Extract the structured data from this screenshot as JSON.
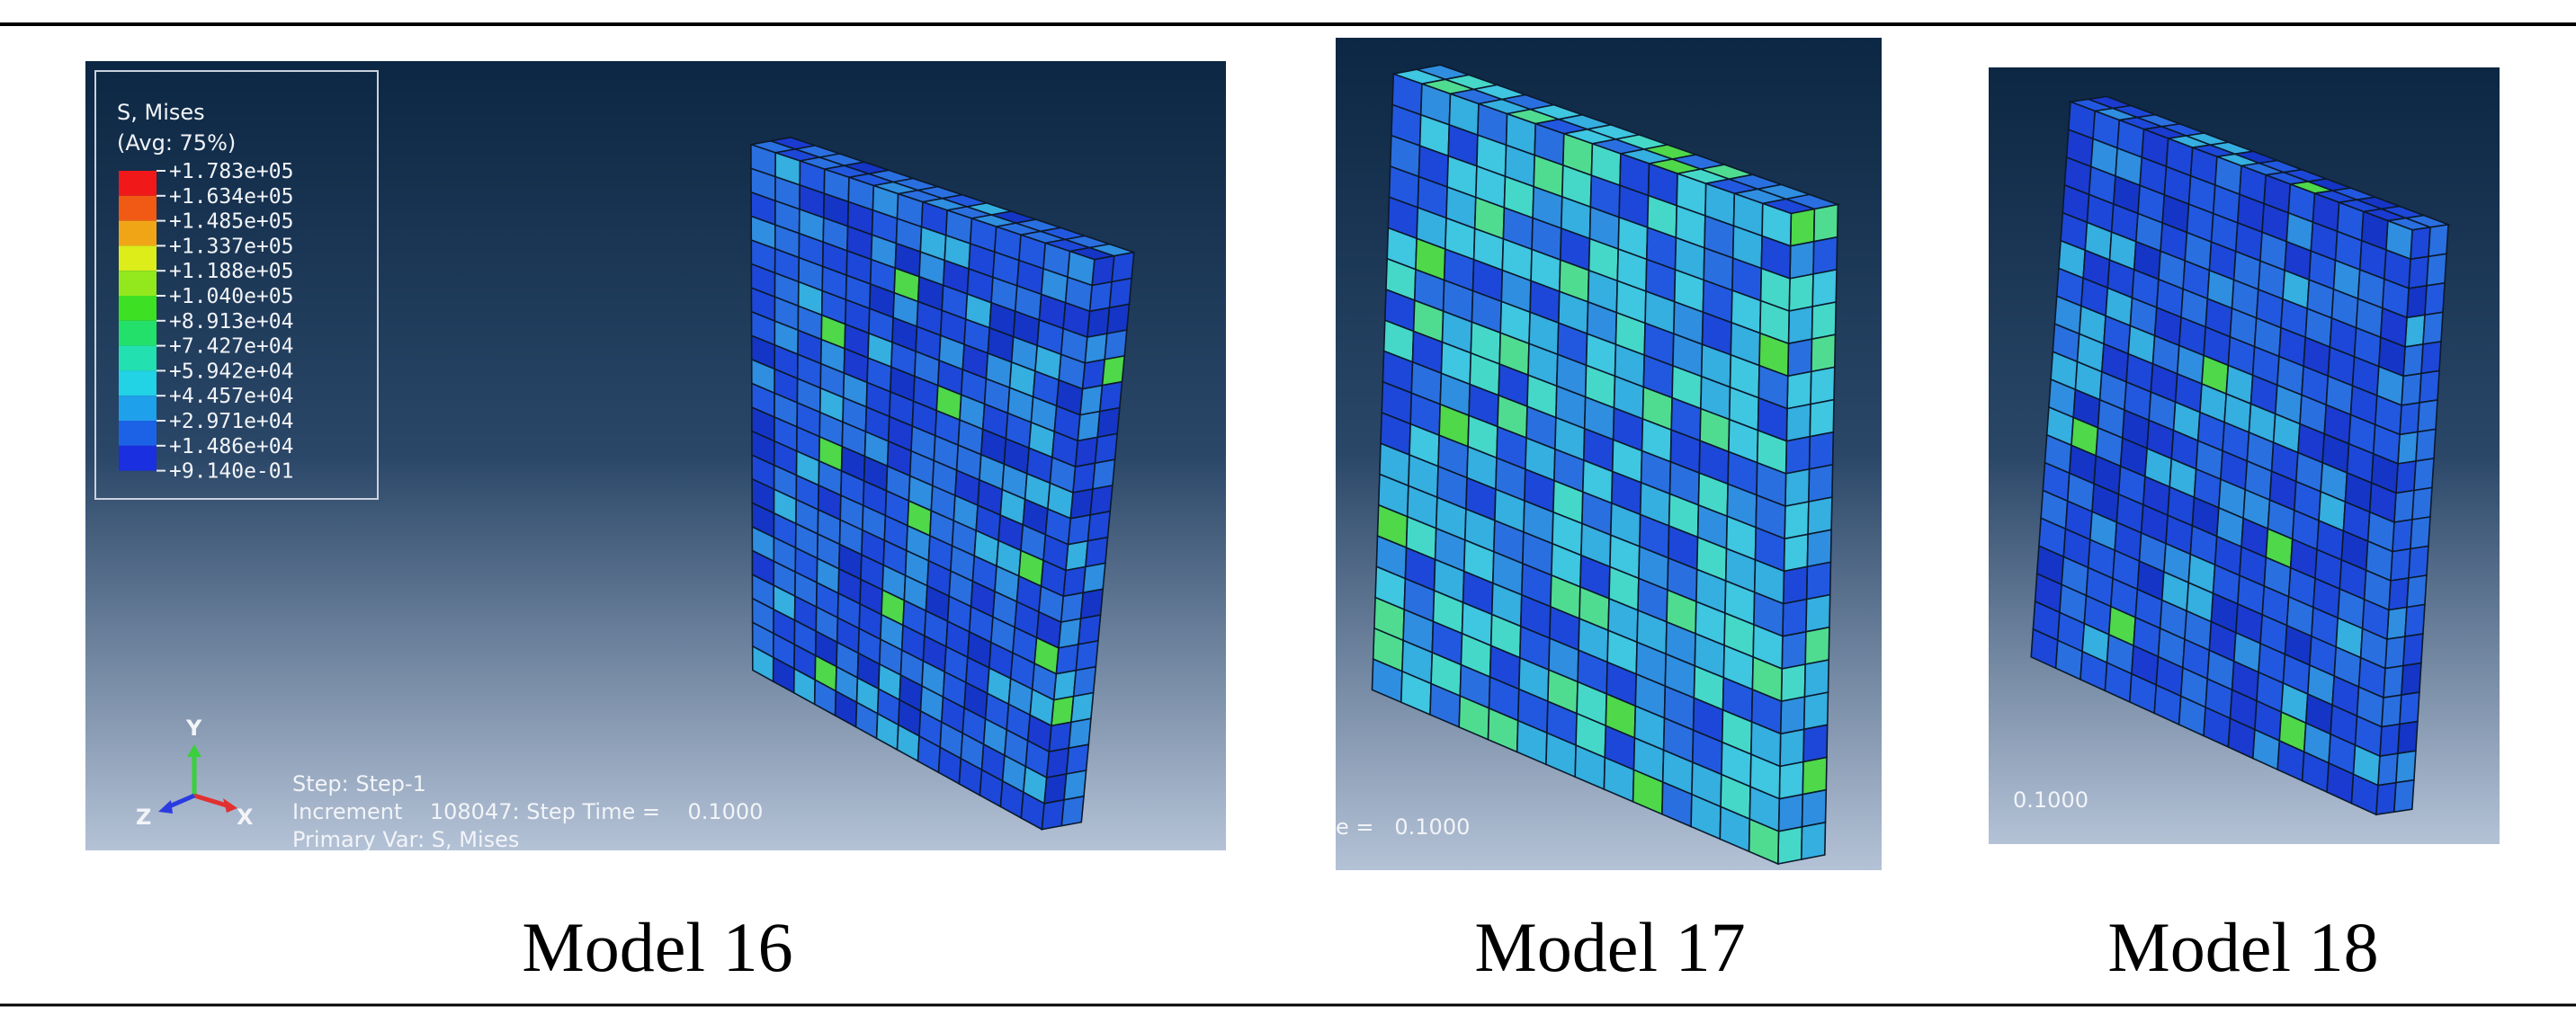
{
  "figure": {
    "panels": [
      {
        "caption": "Model 16",
        "legend": {
          "title": "S, Mises",
          "subtitle": "(Avg: 75%)",
          "entries": [
            "+1.783e+05",
            "+1.634e+05",
            "+1.485e+05",
            "+1.337e+05",
            "+1.188e+05",
            "+1.040e+05",
            "+8.913e+04",
            "+7.427e+04",
            "+5.942e+04",
            "+4.457e+04",
            "+2.971e+04",
            "+1.486e+04",
            "+9.140e-01"
          ]
        },
        "triad": {
          "y": "Y",
          "z": "Z",
          "x": "X"
        },
        "info": [
          "Step: Step-1",
          "Increment    108047: Step Time =    0.1000",
          "Primary Var: S, Mises"
        ]
      },
      {
        "caption": "Model 17",
        "info": [
          "e =   0.1000"
        ]
      },
      {
        "caption": "Model 18",
        "info": [
          "0.1000"
        ]
      }
    ]
  }
}
